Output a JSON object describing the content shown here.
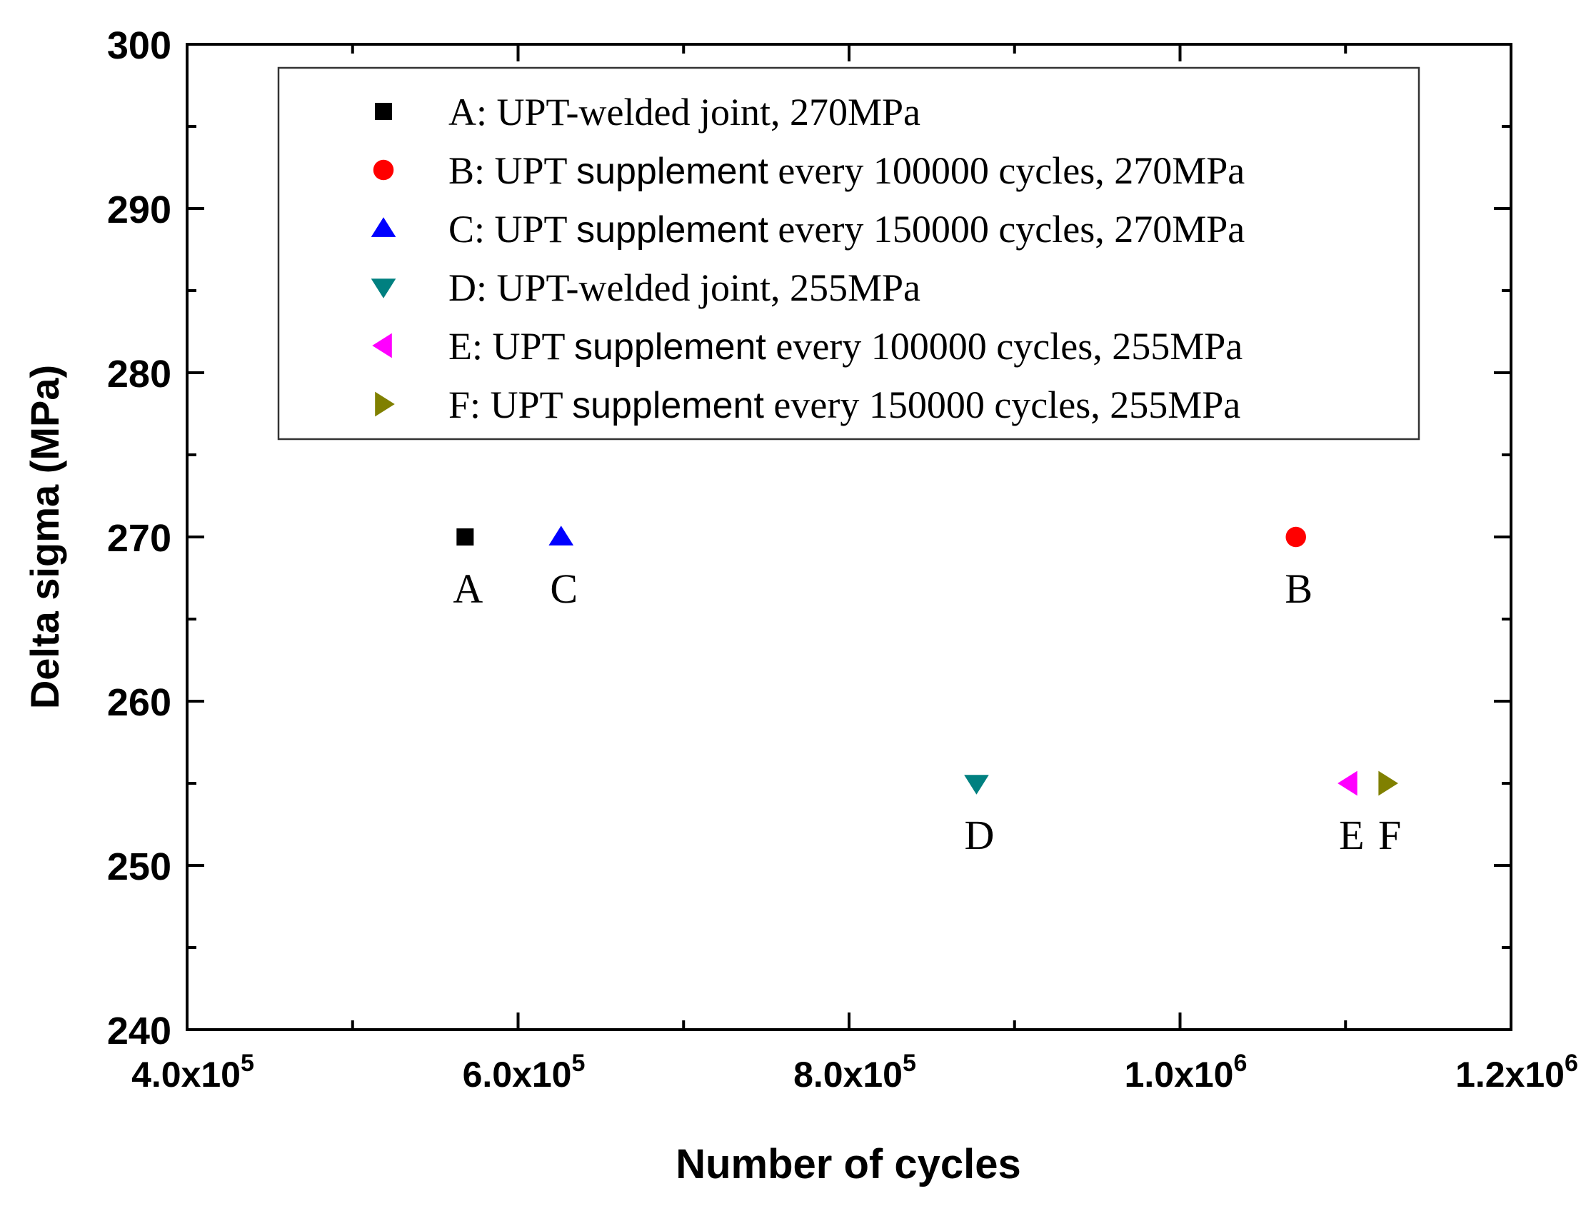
{
  "chart_data": {
    "type": "scatter",
    "title": "",
    "xlabel": "Number of cycles",
    "ylabel": "Delta sigma (MPa)",
    "xlim": [
      400000,
      1200000
    ],
    "ylim": [
      240,
      300
    ],
    "x_ticks": [
      {
        "value": 400000,
        "mantissa": "4.0x10",
        "exp": "5"
      },
      {
        "value": 600000,
        "mantissa": "6.0x10",
        "exp": "5"
      },
      {
        "value": 800000,
        "mantissa": "8.0x10",
        "exp": "5"
      },
      {
        "value": 1000000,
        "mantissa": "1.0x10",
        "exp": "6"
      },
      {
        "value": 1200000,
        "mantissa": "1.2x10",
        "exp": "6"
      }
    ],
    "x_minor_ticks": [
      500000,
      700000,
      900000,
      1100000
    ],
    "y_ticks": [
      {
        "value": 240,
        "label": "240"
      },
      {
        "value": 250,
        "label": "250"
      },
      {
        "value": 260,
        "label": "260"
      },
      {
        "value": 270,
        "label": "270"
      },
      {
        "value": 280,
        "label": "280"
      },
      {
        "value": 290,
        "label": "290"
      },
      {
        "value": 300,
        "label": "300"
      }
    ],
    "y_minor_ticks": [
      245,
      255,
      265,
      275,
      285,
      295
    ],
    "grid": false,
    "legend_position": "top-right",
    "series": [
      {
        "id": "A",
        "legend_prefix": "A: UPT-welded joint, 270MPa",
        "legend_mid": "",
        "legend_suffix": "",
        "marker": "square",
        "color": "#000000",
        "x": [
          568000
        ],
        "y": [
          270
        ],
        "point_label": "A"
      },
      {
        "id": "B",
        "legend_prefix": "B: UPT ",
        "legend_mid": "supplement",
        "legend_suffix": " every 100000 cycles, 270MPa",
        "marker": "circle",
        "color": "#ff0000",
        "x": [
          1070000
        ],
        "y": [
          270
        ],
        "point_label": "B"
      },
      {
        "id": "C",
        "legend_prefix": "C: UPT ",
        "legend_mid": "supplement",
        "legend_suffix": " every 150000 cycles, 270MPa",
        "marker": "triangle-up",
        "color": "#0000ff",
        "x": [
          626000
        ],
        "y": [
          270
        ],
        "point_label": "C"
      },
      {
        "id": "D",
        "legend_prefix": "D: UPT-welded joint, 255MPa",
        "legend_mid": "",
        "legend_suffix": "",
        "marker": "triangle-down",
        "color": "#008080",
        "x": [
          877000
        ],
        "y": [
          255
        ],
        "point_label": "D"
      },
      {
        "id": "E",
        "legend_prefix": "E: UPT ",
        "legend_mid": "supplement",
        "legend_suffix": " every 100000 cycles, 255MPa",
        "marker": "triangle-left",
        "color": "#ff00ff",
        "x": [
          1102000
        ],
        "y": [
          255
        ],
        "point_label": "E"
      },
      {
        "id": "F",
        "legend_prefix": "F: UPT ",
        "legend_mid": "supplement",
        "legend_suffix": " every 150000 cycles, 255MPa",
        "marker": "triangle-right",
        "color": "#808000",
        "x": [
          1125000
        ],
        "y": [
          255
        ],
        "point_label": "F"
      }
    ]
  }
}
